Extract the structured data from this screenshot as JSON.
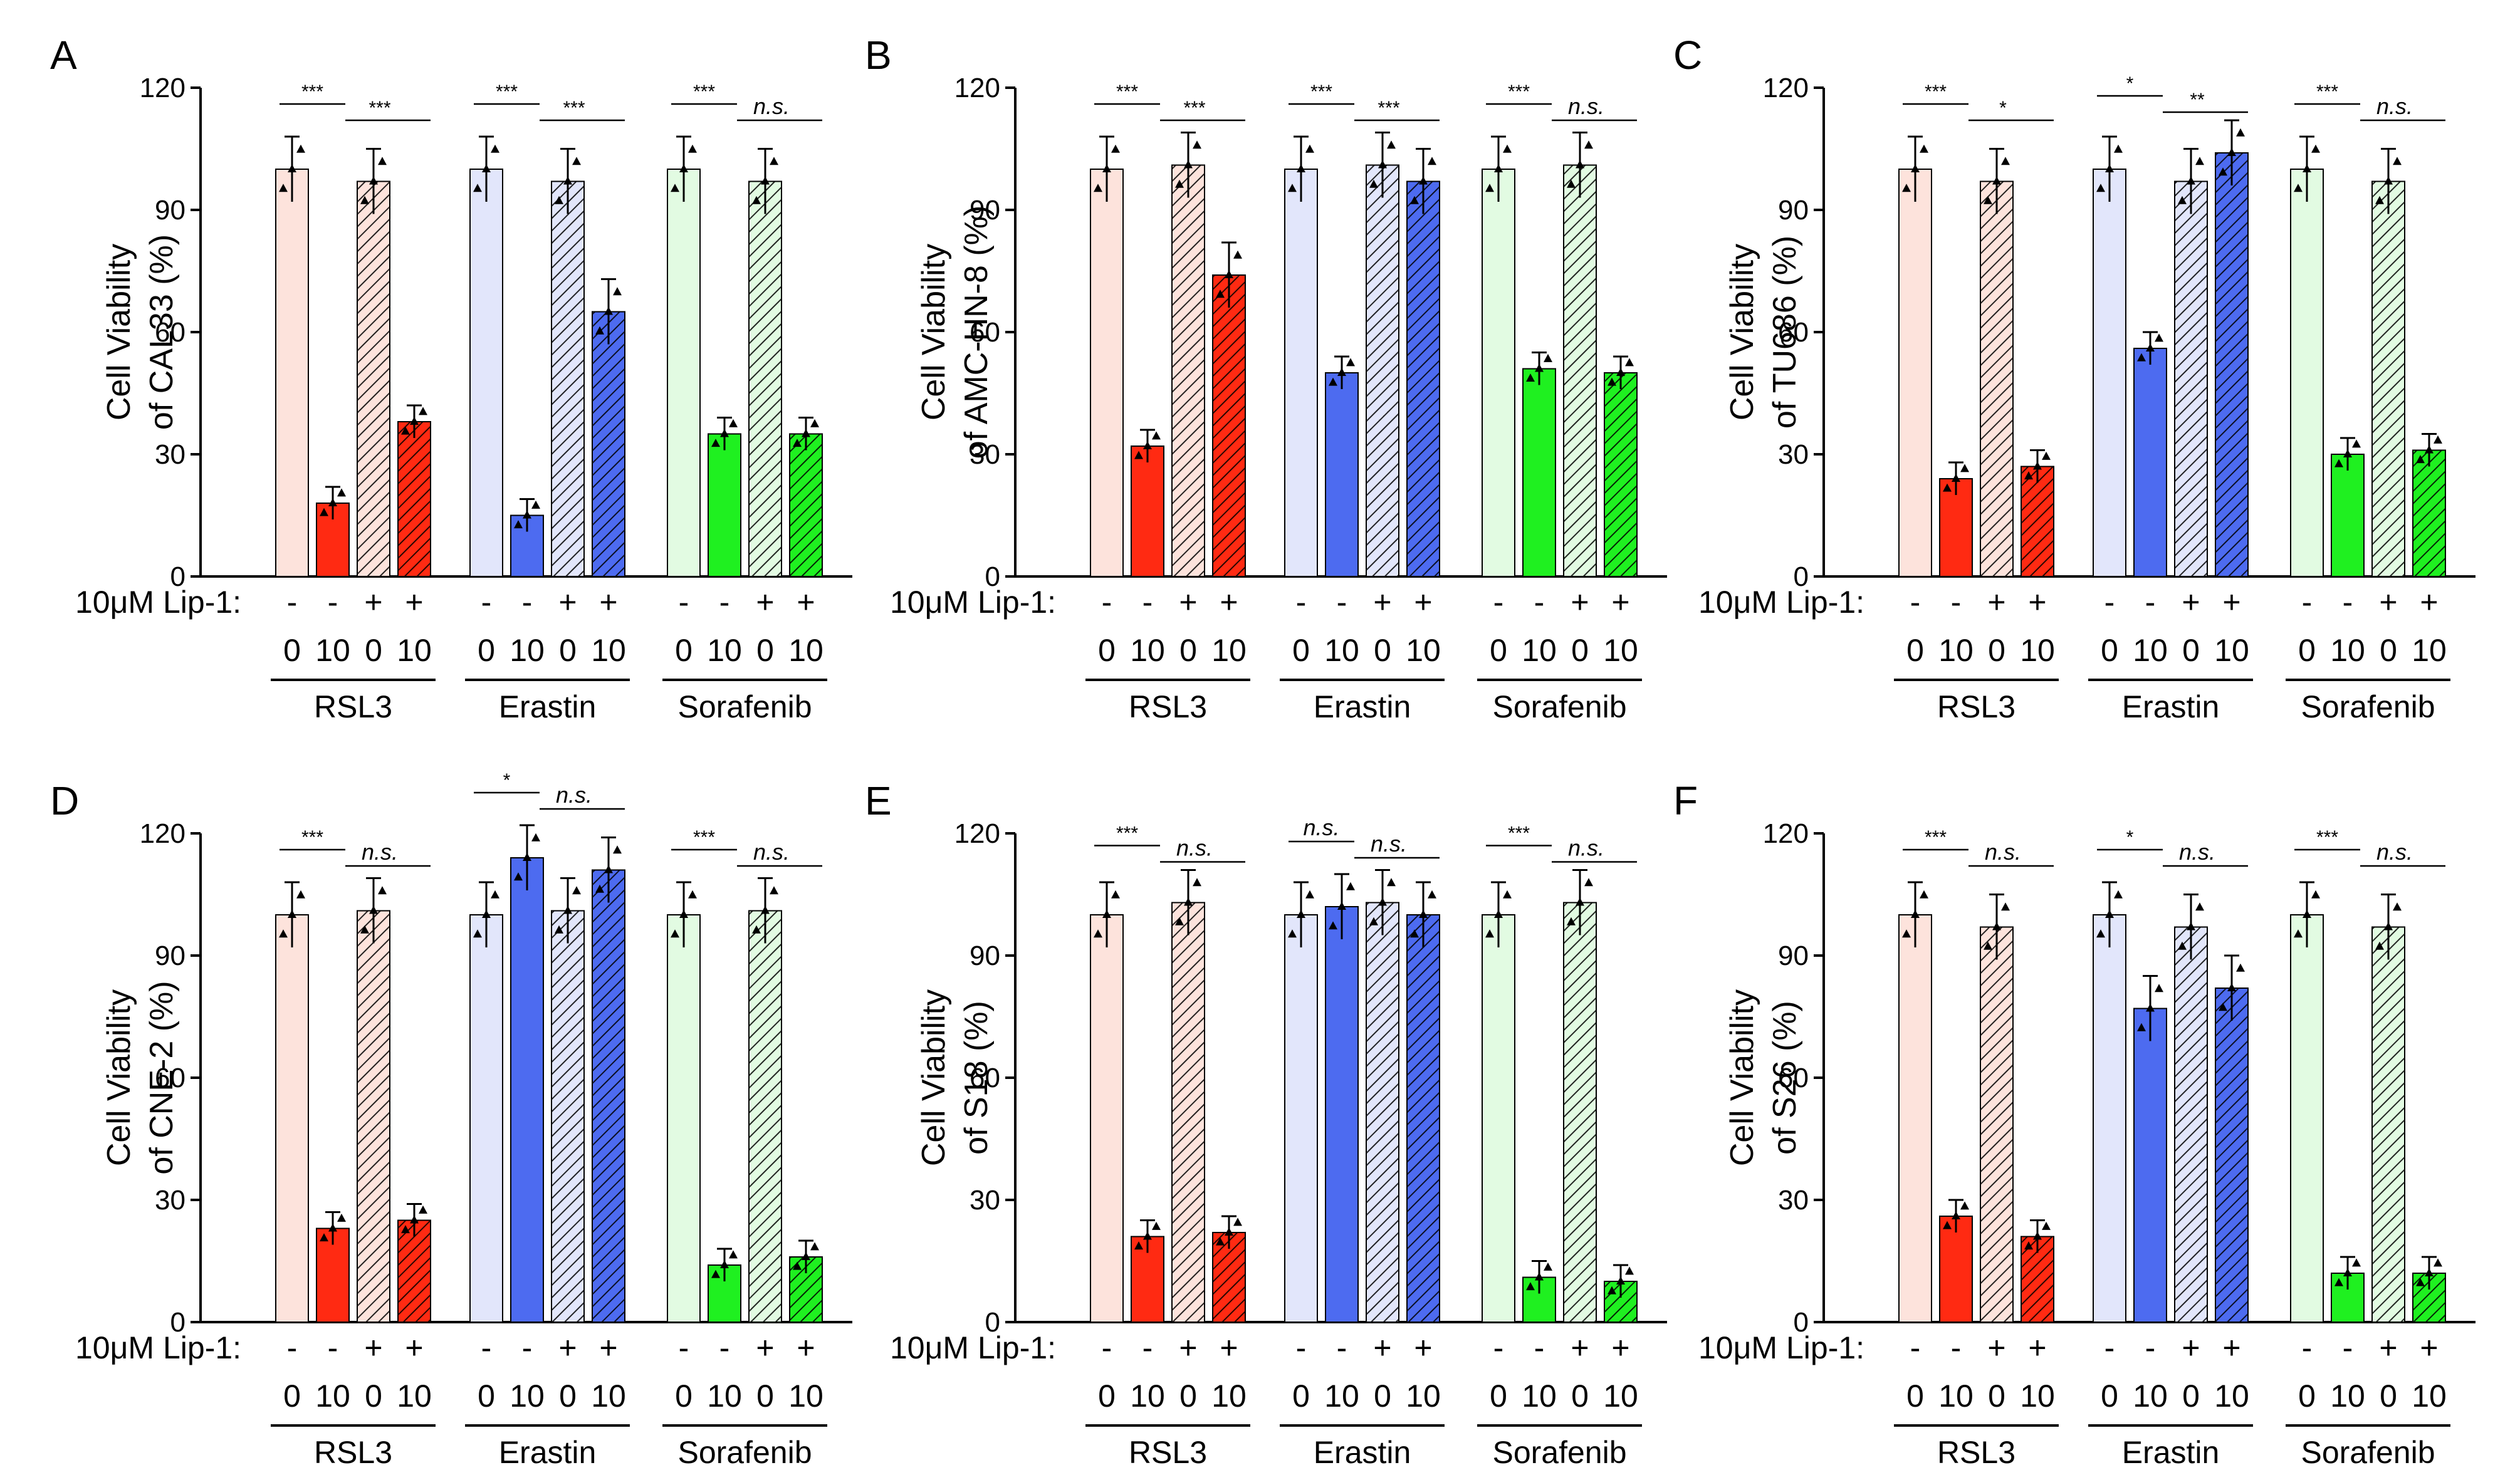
{
  "figure": {
    "treatment_label": "10μM  Lip-1:",
    "lip_signs": [
      "-",
      "-",
      "+",
      "+"
    ],
    "dose_labels": [
      "0",
      "10",
      "0",
      "10"
    ],
    "colors": {
      "RSL3": {
        "light": "#fde3dc",
        "dark": "#ff2a12"
      },
      "Erastin": {
        "light": "#e2e6fb",
        "dark": "#4d6bf0"
      },
      "Sorafenib": {
        "light": "#e2fbe2",
        "dark": "#1ff020"
      }
    }
  },
  "chart_data": [
    {
      "panel": "A",
      "type": "bar",
      "ylabel": [
        "Cell Viability",
        "of CAL33  (%)"
      ],
      "ylim": [
        0,
        120
      ],
      "yticks": [
        0,
        30,
        60,
        90,
        120
      ],
      "groups": [
        "RSL3",
        "Erastin",
        "Sorafenib"
      ],
      "values": [
        [
          100,
          18,
          97,
          38
        ],
        [
          100,
          15,
          97,
          65
        ],
        [
          100,
          35,
          97,
          35
        ]
      ],
      "significance": [
        [
          "***",
          "***"
        ],
        [
          "***",
          "***"
        ],
        [
          "***",
          "n.s."
        ]
      ]
    },
    {
      "panel": "B",
      "type": "bar",
      "ylabel": [
        "Cell Viability",
        "of AMC-HN-8  (%)"
      ],
      "ylim": [
        0,
        120
      ],
      "yticks": [
        0,
        30,
        60,
        90,
        120
      ],
      "groups": [
        "RSL3",
        "Erastin",
        "Sorafenib"
      ],
      "values": [
        [
          100,
          32,
          101,
          74
        ],
        [
          100,
          50,
          101,
          97
        ],
        [
          100,
          51,
          101,
          50
        ]
      ],
      "significance": [
        [
          "***",
          "***"
        ],
        [
          "***",
          "***"
        ],
        [
          "***",
          "n.s."
        ]
      ]
    },
    {
      "panel": "C",
      "type": "bar",
      "ylabel": [
        "Cell Viability",
        "of TU686  (%)"
      ],
      "ylim": [
        0,
        120
      ],
      "yticks": [
        0,
        30,
        60,
        90,
        120
      ],
      "groups": [
        "RSL3",
        "Erastin",
        "Sorafenib"
      ],
      "values": [
        [
          100,
          24,
          97,
          27
        ],
        [
          100,
          56,
          97,
          104
        ],
        [
          100,
          30,
          97,
          31
        ]
      ],
      "significance": [
        [
          "***",
          "*"
        ],
        [
          "*",
          "**"
        ],
        [
          "***",
          "n.s."
        ]
      ]
    },
    {
      "panel": "D",
      "type": "bar",
      "ylabel": [
        "Cell Viability",
        "of CNE-2  (%)"
      ],
      "ylim": [
        0,
        120
      ],
      "yticks": [
        0,
        30,
        60,
        90,
        120
      ],
      "groups": [
        "RSL3",
        "Erastin",
        "Sorafenib"
      ],
      "values": [
        [
          100,
          23,
          101,
          25
        ],
        [
          100,
          114,
          101,
          111
        ],
        [
          100,
          14,
          101,
          16
        ]
      ],
      "significance": [
        [
          "***",
          "n.s."
        ],
        [
          "*",
          "n.s."
        ],
        [
          "***",
          "n.s."
        ]
      ]
    },
    {
      "panel": "E",
      "type": "bar",
      "ylabel": [
        "Cell Viability",
        "of S18  (%)"
      ],
      "ylim": [
        0,
        120
      ],
      "yticks": [
        0,
        30,
        60,
        90,
        120
      ],
      "groups": [
        "RSL3",
        "Erastin",
        "Sorafenib"
      ],
      "values": [
        [
          100,
          21,
          103,
          22
        ],
        [
          100,
          102,
          103,
          100
        ],
        [
          100,
          11,
          103,
          10
        ]
      ],
      "significance": [
        [
          "***",
          "n.s."
        ],
        [
          "n.s.",
          "n.s."
        ],
        [
          "***",
          "n.s."
        ]
      ]
    },
    {
      "panel": "F",
      "type": "bar",
      "ylabel": [
        "Cell Viability",
        "of S26  (%)"
      ],
      "ylim": [
        0,
        120
      ],
      "yticks": [
        0,
        30,
        60,
        90,
        120
      ],
      "groups": [
        "RSL3",
        "Erastin",
        "Sorafenib"
      ],
      "values": [
        [
          100,
          26,
          97,
          21
        ],
        [
          100,
          77,
          97,
          82
        ],
        [
          100,
          12,
          97,
          12
        ]
      ],
      "significance": [
        [
          "***",
          "n.s."
        ],
        [
          "*",
          "n.s."
        ],
        [
          "***",
          "n.s."
        ]
      ]
    }
  ]
}
